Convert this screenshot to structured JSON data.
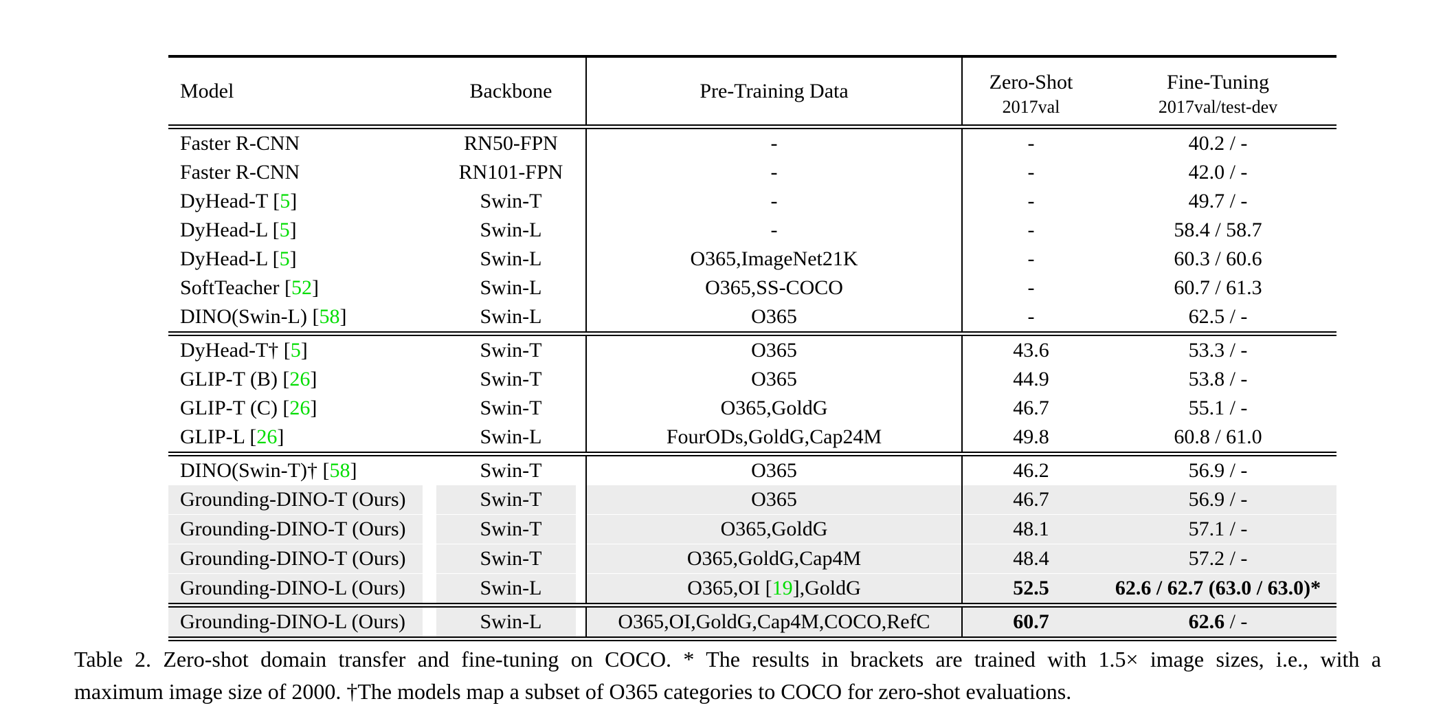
{
  "colors": {
    "citation_green": "#00dd00",
    "row_highlight_gray": "#ececec"
  },
  "table": {
    "header": {
      "model": "Model",
      "backbone": "Backbone",
      "pretraining": "Pre-Training Data",
      "zeroshot_line1": "Zero-Shot",
      "zeroshot_line2": "2017val",
      "finetuning_line1": "Fine-Tuning",
      "finetuning_line2": "2017val/test-dev"
    },
    "blocks": [
      {
        "rows": [
          {
            "gray": false,
            "cells": [
              [
                "Faster R-CNN"
              ],
              [
                "RN50-FPN"
              ],
              [
                "-"
              ],
              [
                "-"
              ],
              [
                "40.2 / -"
              ]
            ]
          },
          {
            "gray": false,
            "cells": [
              [
                "Faster R-CNN"
              ],
              [
                "RN101-FPN"
              ],
              [
                "-"
              ],
              [
                "-"
              ],
              [
                "42.0 / -"
              ]
            ]
          },
          {
            "gray": false,
            "cells": [
              [
                "DyHead-T [",
                {
                  "t": "5",
                  "g": true
                },
                "]"
              ],
              [
                "Swin-T"
              ],
              [
                "-"
              ],
              [
                "-"
              ],
              [
                "49.7 / -"
              ]
            ]
          },
          {
            "gray": false,
            "cells": [
              [
                "DyHead-L [",
                {
                  "t": "5",
                  "g": true
                },
                "]"
              ],
              [
                "Swin-L"
              ],
              [
                "-"
              ],
              [
                "-"
              ],
              [
                "58.4 / 58.7"
              ]
            ]
          },
          {
            "gray": false,
            "cells": [
              [
                "DyHead-L [",
                {
                  "t": "5",
                  "g": true
                },
                "]"
              ],
              [
                "Swin-L"
              ],
              [
                "O365,ImageNet21K"
              ],
              [
                "-"
              ],
              [
                "60.3 / 60.6"
              ]
            ]
          },
          {
            "gray": false,
            "cells": [
              [
                "SoftTeacher [",
                {
                  "t": "52",
                  "g": true
                },
                "]"
              ],
              [
                "Swin-L"
              ],
              [
                "O365,SS-COCO"
              ],
              [
                "-"
              ],
              [
                "60.7 / 61.3"
              ]
            ]
          },
          {
            "gray": false,
            "cells": [
              [
                "DINO(Swin-L) [",
                {
                  "t": "58",
                  "g": true
                },
                "]"
              ],
              [
                "Swin-L"
              ],
              [
                "O365"
              ],
              [
                "-"
              ],
              [
                "62.5 / -"
              ]
            ]
          }
        ]
      },
      {
        "rows": [
          {
            "gray": false,
            "cells": [
              [
                "DyHead-T† [",
                {
                  "t": "5",
                  "g": true
                },
                "]"
              ],
              [
                "Swin-T"
              ],
              [
                "O365"
              ],
              [
                "43.6"
              ],
              [
                "53.3 / -"
              ]
            ]
          },
          {
            "gray": false,
            "cells": [
              [
                "GLIP-T (B) [",
                {
                  "t": "26",
                  "g": true
                },
                "]"
              ],
              [
                "Swin-T"
              ],
              [
                "O365"
              ],
              [
                "44.9"
              ],
              [
                "53.8 / -"
              ]
            ]
          },
          {
            "gray": false,
            "cells": [
              [
                "GLIP-T (C) [",
                {
                  "t": "26",
                  "g": true
                },
                "]"
              ],
              [
                "Swin-T"
              ],
              [
                "O365,GoldG"
              ],
              [
                "46.7"
              ],
              [
                "55.1 / -"
              ]
            ]
          },
          {
            "gray": false,
            "cells": [
              [
                "GLIP-L [",
                {
                  "t": "26",
                  "g": true
                },
                "]"
              ],
              [
                "Swin-L"
              ],
              [
                "FourODs,GoldG,Cap24M"
              ],
              [
                "49.8"
              ],
              [
                "60.8 / 61.0"
              ]
            ]
          }
        ]
      },
      {
        "rows": [
          {
            "gray": false,
            "cells": [
              [
                "DINO(Swin-T)† [",
                {
                  "t": "58",
                  "g": true
                },
                "]"
              ],
              [
                "Swin-T"
              ],
              [
                "O365"
              ],
              [
                "46.2"
              ],
              [
                "56.9 / -"
              ]
            ]
          },
          {
            "gray": true,
            "cells": [
              [
                "Grounding-DINO-T (Ours)"
              ],
              [
                "Swin-T"
              ],
              [
                "O365"
              ],
              [
                "46.7"
              ],
              [
                "56.9 / -"
              ]
            ]
          },
          {
            "gray": true,
            "cells": [
              [
                "Grounding-DINO-T (Ours)"
              ],
              [
                "Swin-T"
              ],
              [
                "O365,GoldG"
              ],
              [
                "48.1"
              ],
              [
                "57.1 / -"
              ]
            ]
          },
          {
            "gray": true,
            "cells": [
              [
                "Grounding-DINO-T (Ours)"
              ],
              [
                "Swin-T"
              ],
              [
                "O365,GoldG,Cap4M"
              ],
              [
                "48.4"
              ],
              [
                "57.2 / -"
              ]
            ]
          },
          {
            "gray": true,
            "cells": [
              [
                "Grounding-DINO-L (Ours)"
              ],
              [
                "Swin-L"
              ],
              [
                "O365,OI [",
                {
                  "t": "19",
                  "g": true
                },
                "],GoldG"
              ],
              [
                {
                  "t": "52.5",
                  "b": true
                }
              ],
              [
                {
                  "t": "62.6 / 62.7 (63.0 / 63.0)*",
                  "b": true
                }
              ]
            ]
          }
        ]
      },
      {
        "rows": [
          {
            "gray": true,
            "cells": [
              [
                "Grounding-DINO-L (Ours)"
              ],
              [
                "Swin-L"
              ],
              [
                "O365,OI,GoldG,Cap4M,COCO,RefC"
              ],
              [
                {
                  "t": "60.7",
                  "b": true
                }
              ],
              [
                {
                  "t": "62.6",
                  "b": true
                },
                " / -"
              ]
            ]
          }
        ]
      }
    ]
  },
  "caption": {
    "line1": "Table 2.  Zero-shot domain transfer and fine-tuning on COCO. * The results in brackets are trained with 1.5× image sizes, i.e., with a",
    "line2": "maximum image size of 2000. †The models map a subset of O365 categories to COCO for zero-shot evaluations."
  }
}
